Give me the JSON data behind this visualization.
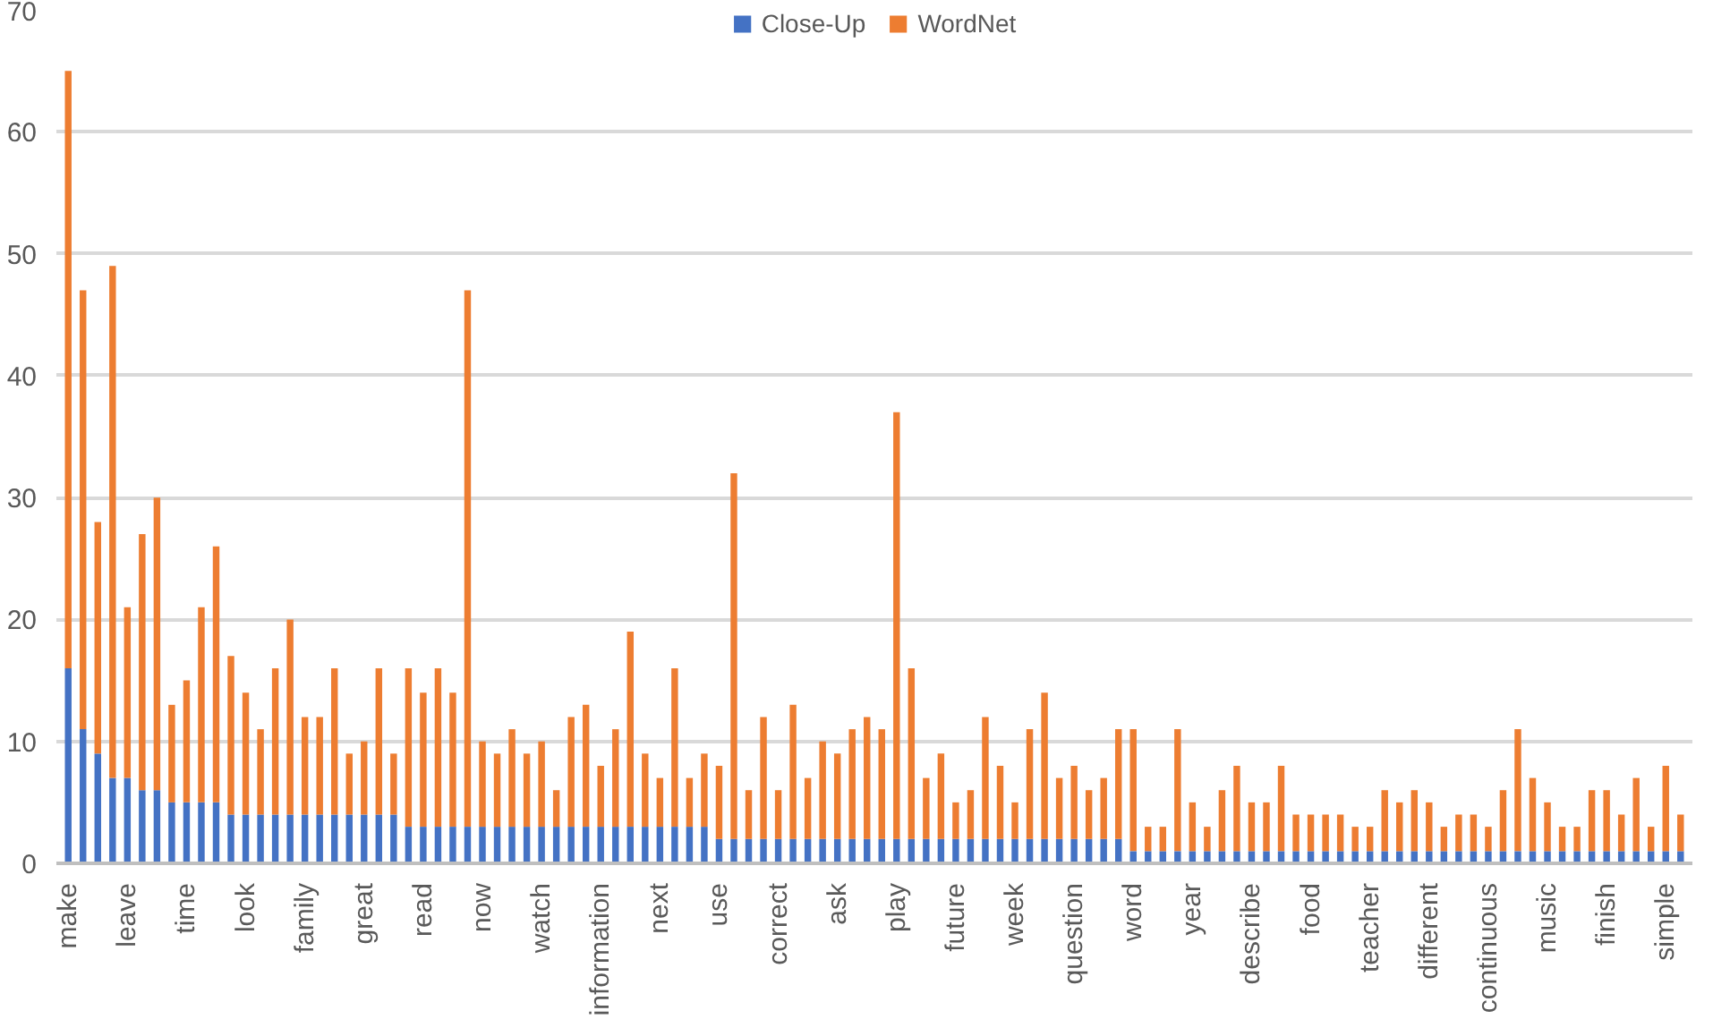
{
  "chart_data": {
    "type": "bar",
    "stacked": true,
    "legend": "top",
    "grid": "y",
    "ylim": [
      0,
      70
    ],
    "yticks": [
      0,
      10,
      20,
      30,
      40,
      50,
      60,
      70
    ],
    "categories": [
      "make",
      null,
      null,
      null,
      "leave",
      null,
      null,
      null,
      "time",
      null,
      null,
      null,
      "look",
      null,
      null,
      null,
      "family",
      null,
      null,
      null,
      "great",
      null,
      null,
      null,
      "read",
      null,
      null,
      null,
      "now",
      null,
      null,
      null,
      "watch",
      null,
      null,
      null,
      "information",
      null,
      null,
      null,
      "next",
      null,
      null,
      null,
      "use",
      null,
      null,
      null,
      "correct",
      null,
      null,
      null,
      "ask",
      null,
      null,
      null,
      "play",
      null,
      null,
      null,
      "future",
      null,
      null,
      null,
      "week",
      null,
      null,
      null,
      "question",
      null,
      null,
      null,
      "word",
      null,
      null,
      null,
      "year",
      null,
      null,
      null,
      "describe",
      null,
      null,
      null,
      "food",
      null,
      null,
      null,
      "teacher",
      null,
      null,
      null,
      "different",
      null,
      null,
      null,
      "continuous",
      null,
      null,
      null,
      "music",
      null,
      null,
      null,
      "finish",
      null,
      null,
      null,
      "simple",
      null
    ],
    "series": [
      {
        "name": "Close-Up",
        "color": "#4472c4",
        "values": [
          16,
          11,
          9,
          7,
          7,
          6,
          6,
          5,
          5,
          5,
          5,
          4,
          4,
          4,
          4,
          4,
          4,
          4,
          4,
          4,
          4,
          4,
          4,
          3,
          3,
          3,
          3,
          3,
          3,
          3,
          3,
          3,
          3,
          3,
          3,
          3,
          3,
          3,
          3,
          3,
          3,
          3,
          3,
          3,
          2,
          2,
          2,
          2,
          2,
          2,
          2,
          2,
          2,
          2,
          2,
          2,
          2,
          2,
          2,
          2,
          2,
          2,
          2,
          2,
          2,
          2,
          2,
          2,
          2,
          2,
          2,
          2,
          1,
          1,
          1,
          1,
          1,
          1,
          1,
          1,
          1,
          1,
          1,
          1,
          1,
          1,
          1,
          1,
          1,
          1,
          1,
          1,
          1,
          1,
          1,
          1,
          1,
          1,
          1,
          1,
          1,
          1,
          1,
          1,
          1,
          1,
          1,
          1,
          1,
          1
        ]
      },
      {
        "name": "WordNet",
        "color": "#ed7d31",
        "values": [
          49,
          36,
          19,
          42,
          14,
          21,
          24,
          8,
          10,
          16,
          21,
          13,
          10,
          7,
          12,
          16,
          8,
          8,
          12,
          5,
          6,
          12,
          5,
          13,
          11,
          13,
          11,
          44,
          7,
          6,
          8,
          6,
          7,
          3,
          9,
          10,
          5,
          8,
          16,
          6,
          4,
          13,
          4,
          6,
          6,
          30,
          4,
          10,
          4,
          11,
          5,
          8,
          7,
          9,
          10,
          9,
          35,
          14,
          5,
          7,
          3,
          4,
          10,
          6,
          3,
          9,
          12,
          5,
          6,
          4,
          5,
          9,
          10,
          2,
          2,
          10,
          4,
          2,
          5,
          7,
          4,
          4,
          7,
          3,
          3,
          3,
          3,
          2,
          2,
          5,
          4,
          5,
          4,
          2,
          3,
          3,
          2,
          5,
          10,
          6,
          4,
          2,
          2,
          5,
          5,
          3,
          6,
          2,
          7,
          3
        ]
      }
    ]
  }
}
